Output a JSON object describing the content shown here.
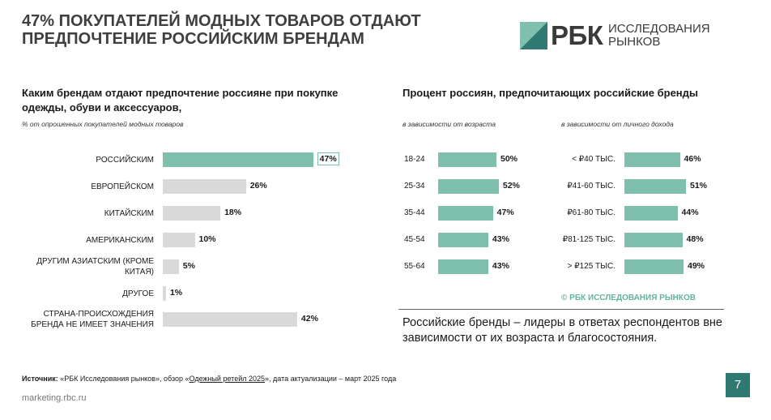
{
  "header": {
    "title_line1": "47% ПОКУПАТЕЛЕЙ МОДНЫХ ТОВАРОВ ОТДАЮТ",
    "title_line2": "ПРЕДПОЧТЕНИЕ РОССИЙСКИМ БРЕНДАМ",
    "logo_main": "РБК",
    "logo_sub1": "ИССЛЕДОВАНИЯ",
    "logo_sub2": "РЫНКОВ"
  },
  "left_section": {
    "title_line1": "Каким брендам отдают предпочтение россияне при покупке",
    "title_line2": "одежды, обуви и аксессуаров,",
    "note": "% от опрошенных покупателей модных товаров"
  },
  "right_section": {
    "title": "Процент россиян, предпочитающих российские бренды",
    "note_age": "в зависимости от возраста",
    "note_income": "в зависимости от личного дохода",
    "copyright": "© РБК ИССЛЕДОВАНИЯ РЫНКОВ"
  },
  "summary": "Российские бренды – лидеры в ответах респондентов вне зависимости от их возраста и благосостояния.",
  "source": {
    "label": "Источник:",
    "text1": " «РБК Исследования рынков»,  обзор «",
    "link": "Одежный ретейл 2025",
    "text2": "», дата актуализации – март 2025 года"
  },
  "footer": "marketing.rbc.ru",
  "page_number": "7",
  "colors": {
    "accent": "#7fbfae",
    "neutral": "#d9d9d9",
    "teal_dark": "#2e7a72"
  },
  "chart_data": [
    {
      "type": "bar",
      "orientation": "horizontal",
      "categories": [
        "РОССИЙСКИМ",
        "ЕВРОПЕЙСКОМ",
        "КИТАЙСКИМ",
        "АМЕРИКАНСКИМ",
        "ДРУГИМ АЗИАТСКИМ (КРОМЕ КИТАЯ)",
        "ДРУГОЕ",
        "СТРАНА-ПРОИСХОЖДЕНИЯ БРЕНДА НЕ ИМЕЕТ ЗНАЧЕНИЯ"
      ],
      "values": [
        47,
        26,
        18,
        10,
        5,
        1,
        42
      ],
      "labels": [
        "47%",
        "26%",
        "18%",
        "10%",
        "5%",
        "1%",
        "42%"
      ],
      "highlight": [
        true,
        false,
        false,
        false,
        false,
        false,
        false
      ]
    },
    {
      "type": "bar",
      "orientation": "horizontal",
      "categories": [
        "18-24",
        "25-34",
        "35-44",
        "45-54",
        "55-64"
      ],
      "values": [
        50,
        52,
        47,
        43,
        43
      ],
      "labels": [
        "50%",
        "52%",
        "47%",
        "43%",
        "43%"
      ]
    },
    {
      "type": "bar",
      "orientation": "horizontal",
      "categories": [
        "< ₽40 ТЫС.",
        "₽41-60 ТЫС.",
        "₽61-80 ТЫС.",
        "₽81-125 ТЫС.",
        "> ₽125 ТЫС."
      ],
      "values": [
        46,
        51,
        44,
        48,
        49
      ],
      "labels": [
        "46%",
        "51%",
        "44%",
        "48%",
        "49%"
      ]
    }
  ]
}
